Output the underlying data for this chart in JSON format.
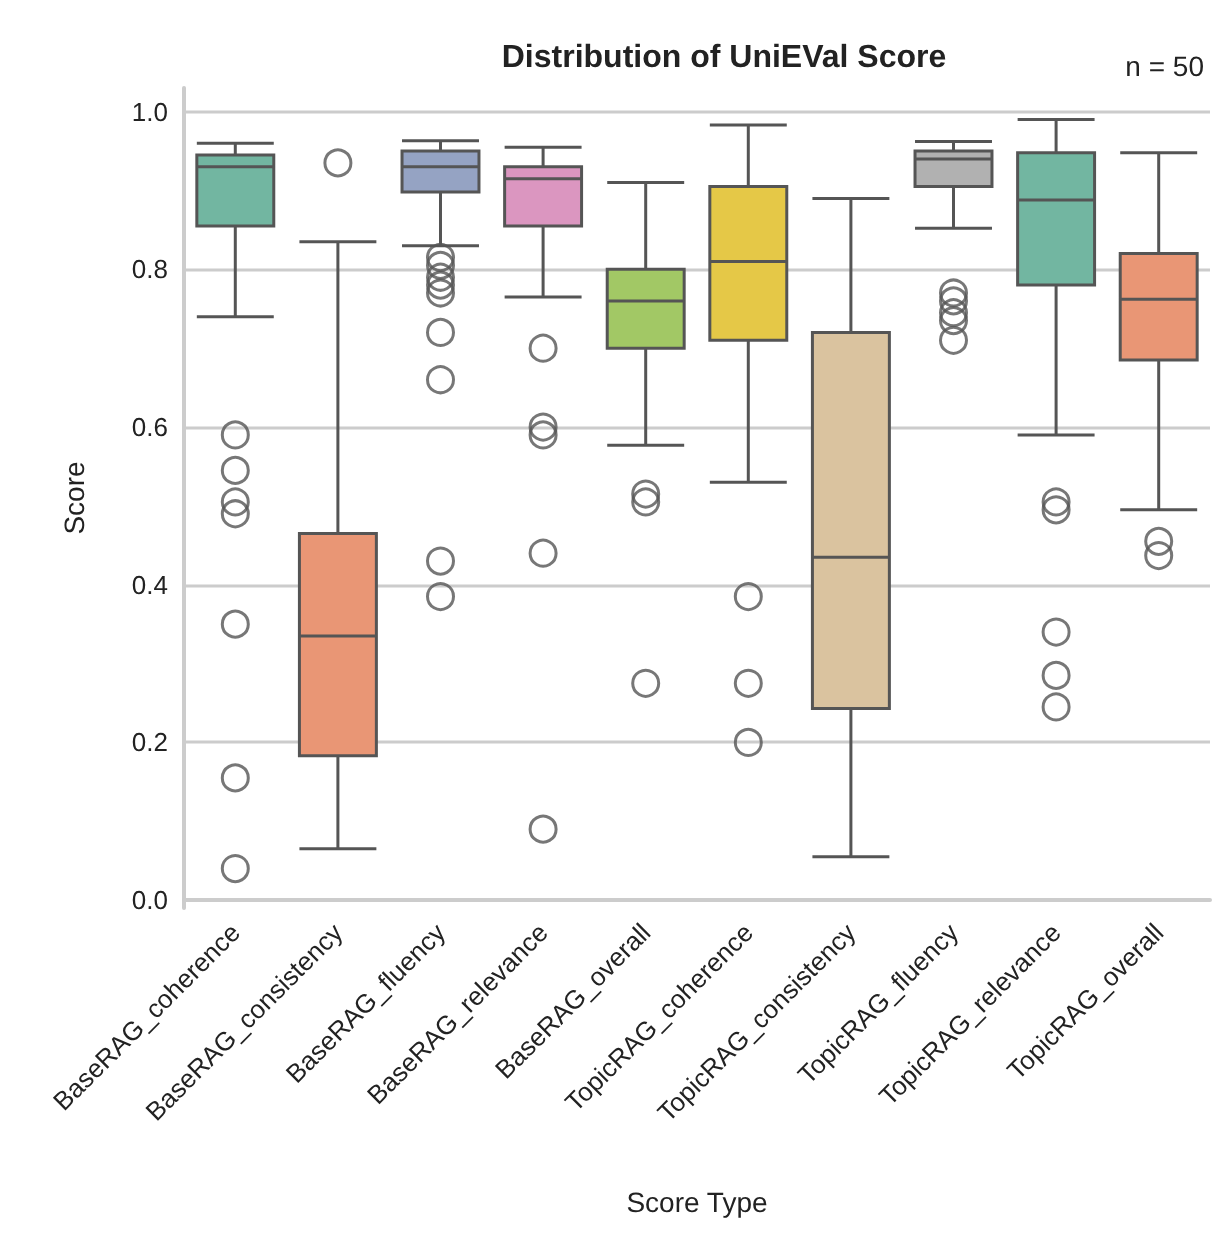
{
  "chart_data": {
    "type": "box",
    "title": "Distribution of UniEVal Score",
    "xlabel": "Score Type",
    "ylabel": "Score",
    "annotations": [
      "n = 50"
    ],
    "categories": [
      "BaseRAG_coherence",
      "BaseRAG_consistency",
      "BaseRAG_fluency",
      "BaseRAG_relevance",
      "BaseRAG_overall",
      "TopicRAG_coherence",
      "TopicRAG_consistency",
      "TopicRAG_fluency",
      "TopicRAG_relevance",
      "TopicRAG_overall"
    ],
    "colors": [
      "#72b6a1",
      "#e99675",
      "#95a3c3",
      "#db96c0",
      "#a2c865",
      "#e5c847",
      "#dac39f",
      "#b1b1b1",
      "#72b6a1",
      "#e99675"
    ],
    "boxes": [
      {
        "low": 0.74,
        "q1": 0.855,
        "median": 0.93,
        "q3": 0.945,
        "high": 0.96,
        "outliers": [
          0.59,
          0.545,
          0.505,
          0.49,
          0.35,
          0.155,
          0.04
        ]
      },
      {
        "low": 0.065,
        "q1": 0.183,
        "median": 0.335,
        "q3": 0.465,
        "high": 0.835,
        "outliers": [
          0.935
        ]
      },
      {
        "low": 0.83,
        "q1": 0.898,
        "median": 0.93,
        "q3": 0.95,
        "high": 0.963,
        "outliers": [
          0.815,
          0.805,
          0.79,
          0.78,
          0.77,
          0.72,
          0.66,
          0.43,
          0.385
        ]
      },
      {
        "low": 0.765,
        "q1": 0.855,
        "median": 0.915,
        "q3": 0.93,
        "high": 0.955,
        "outliers": [
          0.7,
          0.6,
          0.59,
          0.44,
          0.09
        ]
      },
      {
        "low": 0.577,
        "q1": 0.7,
        "median": 0.76,
        "q3": 0.8,
        "high": 0.91,
        "outliers": [
          0.515,
          0.505,
          0.275
        ]
      },
      {
        "low": 0.53,
        "q1": 0.71,
        "median": 0.81,
        "q3": 0.905,
        "high": 0.983,
        "outliers": [
          0.385,
          0.275,
          0.2
        ]
      },
      {
        "low": 0.055,
        "q1": 0.243,
        "median": 0.435,
        "q3": 0.72,
        "high": 0.89
      },
      {
        "low": 0.852,
        "q1": 0.905,
        "median": 0.94,
        "q3": 0.95,
        "high": 0.962,
        "outliers": [
          0.77,
          0.76,
          0.745,
          0.735,
          0.71
        ]
      },
      {
        "low": 0.59,
        "q1": 0.78,
        "median": 0.888,
        "q3": 0.948,
        "high": 0.99,
        "outliers": [
          0.505,
          0.495,
          0.34,
          0.285,
          0.245
        ]
      },
      {
        "low": 0.495,
        "q1": 0.685,
        "median": 0.762,
        "q3": 0.82,
        "high": 0.948,
        "outliers": [
          0.455,
          0.437
        ]
      }
    ],
    "ylim": [
      -0.01,
      1.03
    ],
    "yticks": [
      {
        "value": 0,
        "label": "0.0"
      },
      0.2,
      0.4,
      0.6,
      0.8,
      {
        "value": 1,
        "label": "1.0"
      }
    ],
    "grid": "y",
    "marker": "circle"
  }
}
